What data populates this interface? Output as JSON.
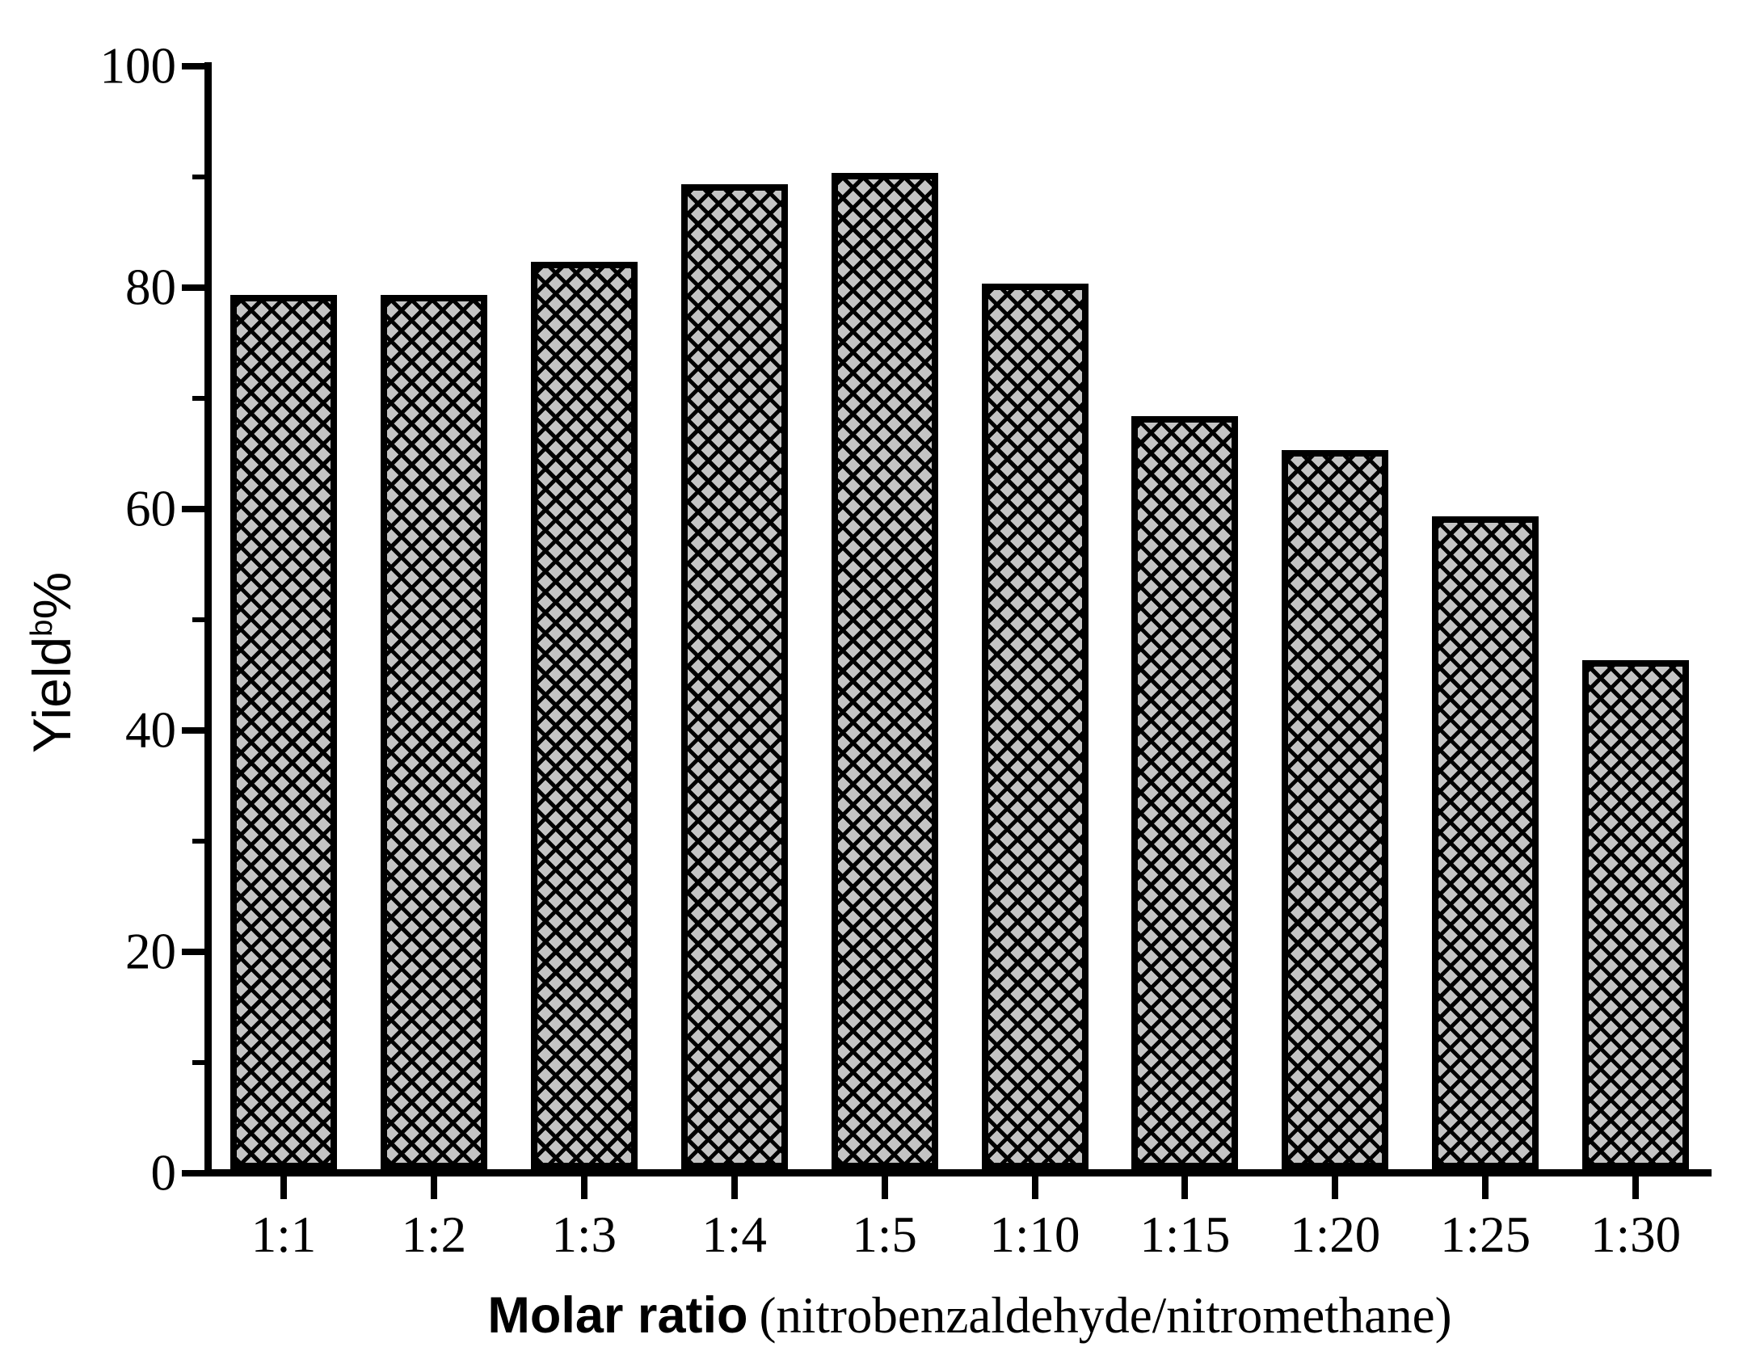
{
  "chart_data": {
    "type": "bar",
    "title": "",
    "categories": [
      "1:1",
      "1:2",
      "1:3",
      "1:4",
      "1:5",
      "1:10",
      "1:15",
      "1:20",
      "1:25",
      "1:30"
    ],
    "values": [
      79,
      79,
      82,
      89,
      90,
      80,
      68,
      65,
      59,
      46
    ],
    "xlabel_bold": "Molar ratio",
    "xlabel_normal": "(nitrobenzaldehyde/nitromethane)",
    "ylabel_main": "Yield",
    "ylabel_sup": "b",
    "ylabel_suffix": "%",
    "ylim": [
      0,
      100
    ],
    "yticks_major": [
      0,
      20,
      40,
      60,
      80,
      100
    ],
    "yticks_minor": [
      10,
      30,
      50,
      70,
      90
    ],
    "grid": "off",
    "legend": "none",
    "bar_fill_color": "#c4c4c4",
    "bar_hatch": "black-diagonal-crosshatch",
    "axis_color": "#000000",
    "background_color": "#ffffff"
  }
}
